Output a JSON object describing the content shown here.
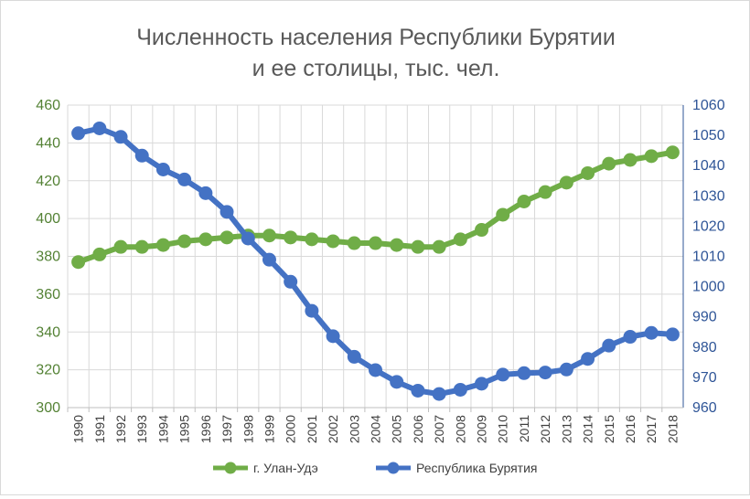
{
  "chart_data": {
    "type": "line",
    "title_lines": [
      "Численность населения Республики Бурятии",
      "и ее столицы, тыс. чел."
    ],
    "x": [
      "1990",
      "1991",
      "1992",
      "1993",
      "1994",
      "1995",
      "1996",
      "1997",
      "1998",
      "1999",
      "2000",
      "2001",
      "2002",
      "2003",
      "2004",
      "2005",
      "2006",
      "2007",
      "2008",
      "2009",
      "2010",
      "2011",
      "2012",
      "2013",
      "2014",
      "2015",
      "2016",
      "2017",
      "2018"
    ],
    "y_left": {
      "min": 300,
      "max": 460,
      "step": 20,
      "color": "#548235"
    },
    "y_right": {
      "min": 960,
      "max": 1060,
      "step": 10,
      "color": "#2f5597"
    },
    "grid": true,
    "legend_position": "bottom",
    "series": [
      {
        "name": "г. Улан-Удэ",
        "axis": "left",
        "color": "#70ad47",
        "values": [
          377,
          381,
          385,
          385,
          386,
          388,
          389,
          390,
          391,
          391,
          390,
          389,
          388,
          387,
          387,
          386,
          385,
          385,
          389,
          394,
          402,
          409,
          414,
          419,
          424,
          429,
          431,
          433,
          435
        ]
      },
      {
        "name": "Республика Бурятия",
        "axis": "right",
        "color": "#4472c4",
        "values": [
          1050.7,
          1052.3,
          1049.5,
          1043.3,
          1038.7,
          1035.4,
          1030.9,
          1024.7,
          1015.9,
          1008.9,
          1001.6,
          992.0,
          983.6,
          976.8,
          972.4,
          968.5,
          965.6,
          964.5,
          965.9,
          967.9,
          970.9,
          971.4,
          971.6,
          972.6,
          976.1,
          980.5,
          983.4,
          984.7,
          984.2
        ]
      }
    ]
  }
}
